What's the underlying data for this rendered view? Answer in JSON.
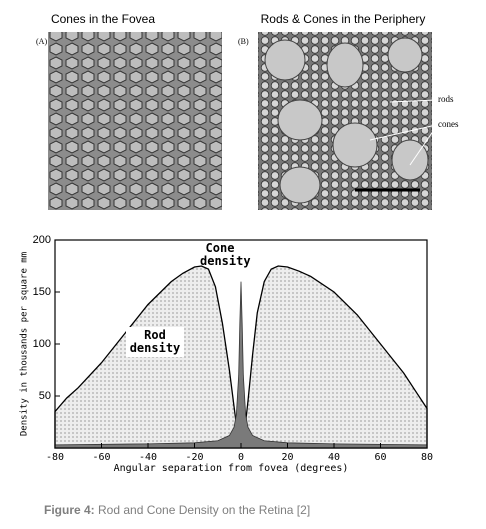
{
  "panels": [
    {
      "title": "Cones in the Fovea",
      "label": "(A)"
    },
    {
      "title": "Rods & Cones in the Periphery",
      "label": "(B)",
      "annotations": [
        "rods",
        "cones"
      ]
    }
  ],
  "chart_data": {
    "type": "area",
    "xlabel": "Angular separation from fovea (degrees)",
    "ylabel": "Density in thousands per square mm",
    "xlim": [
      -80,
      80
    ],
    "ylim": [
      0,
      200
    ],
    "xticks": [
      -80,
      -60,
      -40,
      -20,
      0,
      20,
      40,
      60,
      80
    ],
    "yticks": [
      50,
      100,
      150,
      200
    ],
    "series": [
      {
        "name": "Rod density",
        "color": "#000000",
        "x": [
          -80,
          -75,
          -70,
          -60,
          -50,
          -40,
          -30,
          -25,
          -20,
          -17,
          -14,
          -11,
          -8,
          -5,
          -3,
          -1,
          1,
          3,
          5,
          7,
          10,
          13,
          16,
          20,
          25,
          30,
          40,
          50,
          60,
          70,
          75,
          80
        ],
        "values": [
          35,
          48,
          58,
          82,
          110,
          138,
          160,
          168,
          174,
          175,
          172,
          155,
          120,
          75,
          40,
          5,
          5,
          45,
          90,
          130,
          160,
          172,
          175,
          174,
          170,
          165,
          150,
          128,
          100,
          72,
          55,
          38
        ]
      },
      {
        "name": "Cone density",
        "color": "#7a7a7a",
        "x": [
          -80,
          -40,
          -20,
          -10,
          -5,
          -3,
          -2,
          -1,
          -0.5,
          0,
          0.5,
          1,
          2,
          3,
          5,
          10,
          20,
          40,
          80
        ],
        "values": [
          3,
          4,
          5,
          7,
          12,
          20,
          32,
          70,
          120,
          160,
          120,
          70,
          32,
          20,
          12,
          7,
          5,
          4,
          3
        ]
      }
    ]
  },
  "caption": {
    "label": "Figure 4:",
    "text": "Rod and Cone Density on the Retina [2]"
  }
}
